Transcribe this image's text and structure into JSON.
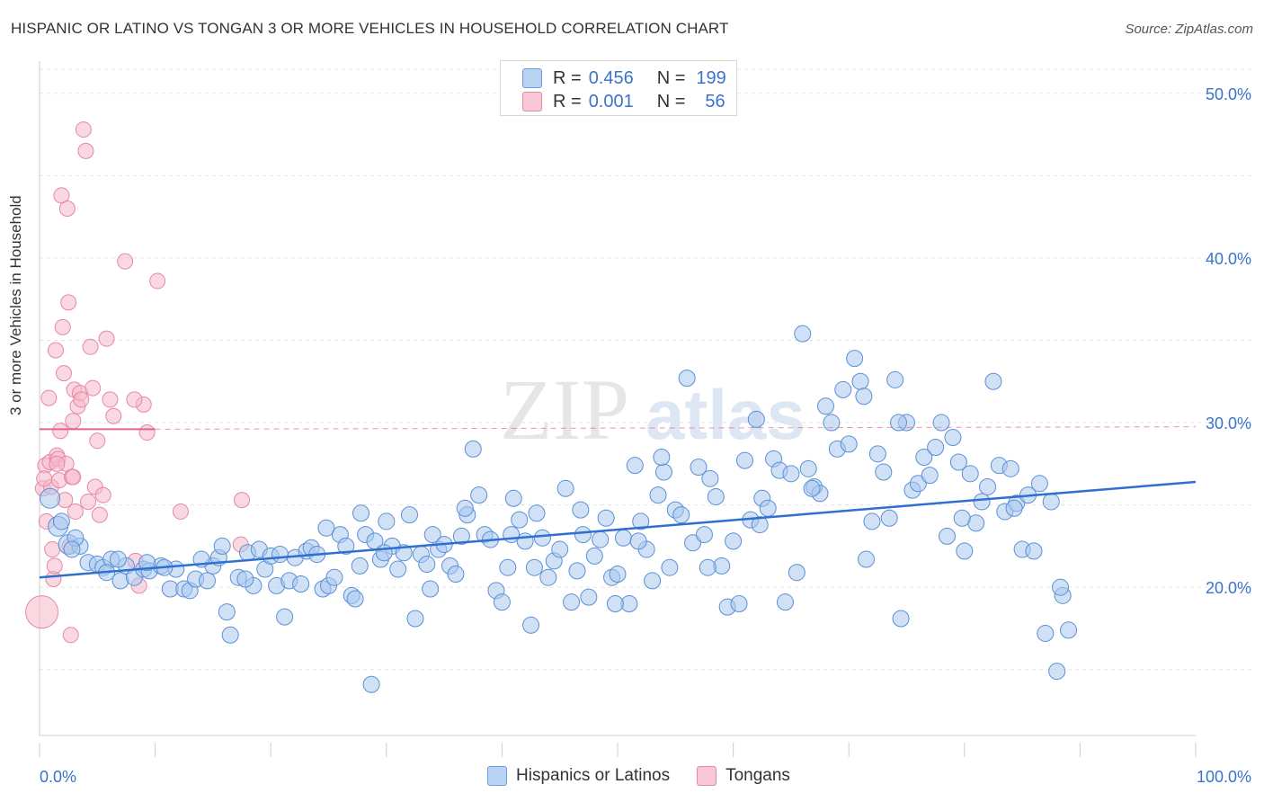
{
  "header": {
    "title": "HISPANIC OR LATINO VS TONGAN 3 OR MORE VEHICLES IN HOUSEHOLD CORRELATION CHART",
    "source": "Source: ZipAtlas.com"
  },
  "watermark": {
    "part1": "ZIP",
    "part2": "atlas"
  },
  "legend": {
    "rows": [
      {
        "r_label": "R =",
        "r_value": "0.456",
        "n_label": "N =",
        "n_value": "199"
      },
      {
        "r_label": "R =",
        "r_value": "0.001",
        "n_label": "N =",
        "n_value": "56"
      }
    ]
  },
  "bottom_legend": {
    "series1": "Hispanics or Latinos",
    "series2": "Tongans"
  },
  "chart_data": {
    "type": "scatter",
    "title": "HISPANIC OR LATINO VS TONGAN 3 OR MORE VEHICLES IN HOUSEHOLD CORRELATION CHART",
    "ylabel": "3 or more Vehicles in Household",
    "xlim": [
      0,
      100
    ],
    "ylim": [
      11.0,
      52.5
    ],
    "x_tick_labels": [
      "0.0%",
      "100.0%"
    ],
    "y_ticks": [
      20,
      30,
      40,
      50
    ],
    "y_tick_labels": [
      "20.0%",
      "30.0%",
      "40.0%",
      "50.0%"
    ],
    "grid": true,
    "colors": {
      "blue_fill": "#a9c8ef",
      "blue_stroke": "#5b8fd6",
      "blue_line": "#2f6fd0",
      "pink_fill": "#f5b8cb",
      "pink_stroke": "#e687a6",
      "pink_line": "#e0658d",
      "tick_text": "#3a73c9"
    },
    "series": [
      {
        "name": "Hispanics or Latinos",
        "r": 0.456,
        "n": 199,
        "trend": {
          "x": [
            0,
            100
          ],
          "y": [
            20.6,
            26.4
          ]
        },
        "points": [
          [
            0.9,
            25.4
          ],
          [
            1.6,
            23.7
          ],
          [
            2.5,
            22.6
          ],
          [
            3.5,
            22.5
          ],
          [
            4.2,
            21.5
          ],
          [
            5.0,
            21.4
          ],
          [
            5.5,
            21.2
          ],
          [
            6.2,
            21.7
          ],
          [
            7.0,
            20.4
          ],
          [
            7.5,
            21.3
          ],
          [
            8.2,
            20.6
          ],
          [
            9.0,
            21.1
          ],
          [
            9.5,
            21.0
          ],
          [
            10.5,
            21.3
          ],
          [
            11.3,
            19.9
          ],
          [
            11.8,
            21.1
          ],
          [
            12.5,
            19.9
          ],
          [
            13.0,
            19.8
          ],
          [
            13.5,
            20.5
          ],
          [
            14.5,
            20.4
          ],
          [
            15.0,
            21.3
          ],
          [
            15.5,
            21.8
          ],
          [
            16.2,
            18.5
          ],
          [
            16.5,
            17.1
          ],
          [
            17.2,
            20.6
          ],
          [
            18.0,
            22.1
          ],
          [
            18.5,
            20.1
          ],
          [
            19.0,
            22.3
          ],
          [
            19.5,
            21.1
          ],
          [
            20.0,
            21.9
          ],
          [
            20.5,
            20.1
          ],
          [
            21.2,
            18.2
          ],
          [
            21.6,
            20.4
          ],
          [
            22.1,
            21.8
          ],
          [
            22.6,
            20.2
          ],
          [
            23.1,
            22.2
          ],
          [
            23.5,
            22.4
          ],
          [
            24.0,
            22.0
          ],
          [
            24.5,
            19.9
          ],
          [
            25.0,
            20.1
          ],
          [
            25.5,
            20.6
          ],
          [
            26.0,
            23.2
          ],
          [
            26.5,
            22.5
          ],
          [
            27.0,
            19.5
          ],
          [
            27.3,
            19.3
          ],
          [
            27.7,
            21.3
          ],
          [
            28.2,
            23.2
          ],
          [
            28.7,
            14.1
          ],
          [
            29.0,
            22.8
          ],
          [
            29.5,
            21.7
          ],
          [
            30.0,
            24.0
          ],
          [
            30.5,
            22.5
          ],
          [
            31.0,
            21.1
          ],
          [
            31.5,
            22.1
          ],
          [
            32.0,
            24.4
          ],
          [
            32.5,
            18.1
          ],
          [
            33.0,
            22.0
          ],
          [
            33.5,
            21.4
          ],
          [
            34.0,
            23.2
          ],
          [
            34.5,
            22.3
          ],
          [
            35.0,
            22.6
          ],
          [
            35.5,
            21.3
          ],
          [
            36.0,
            20.8
          ],
          [
            36.5,
            23.1
          ],
          [
            37.0,
            24.4
          ],
          [
            37.5,
            28.4
          ],
          [
            38.0,
            25.6
          ],
          [
            38.5,
            23.2
          ],
          [
            39.0,
            22.9
          ],
          [
            39.5,
            19.8
          ],
          [
            40.0,
            19.1
          ],
          [
            40.5,
            21.2
          ],
          [
            41.0,
            25.4
          ],
          [
            41.5,
            24.1
          ],
          [
            42.0,
            22.8
          ],
          [
            42.5,
            17.7
          ],
          [
            43.0,
            24.5
          ],
          [
            43.5,
            23.0
          ],
          [
            44.0,
            20.6
          ],
          [
            44.5,
            21.6
          ],
          [
            45.0,
            22.3
          ],
          [
            45.5,
            26.0
          ],
          [
            46.0,
            19.1
          ],
          [
            46.5,
            21.0
          ],
          [
            47.0,
            23.2
          ],
          [
            47.5,
            19.4
          ],
          [
            48.0,
            21.9
          ],
          [
            48.5,
            22.9
          ],
          [
            49.0,
            24.2
          ],
          [
            49.5,
            20.6
          ],
          [
            50.0,
            20.8
          ],
          [
            50.5,
            23.0
          ],
          [
            51.0,
            19.0
          ],
          [
            51.5,
            27.4
          ],
          [
            52.0,
            24.0
          ],
          [
            52.5,
            22.3
          ],
          [
            53.0,
            20.4
          ],
          [
            53.5,
            25.6
          ],
          [
            54.0,
            27.0
          ],
          [
            54.5,
            21.2
          ],
          [
            55.0,
            24.7
          ],
          [
            55.5,
            24.4
          ],
          [
            56.0,
            32.7
          ],
          [
            56.5,
            22.7
          ],
          [
            57.0,
            27.3
          ],
          [
            57.5,
            23.2
          ],
          [
            58.0,
            26.6
          ],
          [
            58.5,
            25.5
          ],
          [
            59.0,
            21.3
          ],
          [
            59.5,
            18.8
          ],
          [
            60.0,
            22.8
          ],
          [
            60.5,
            19.0
          ],
          [
            61.0,
            27.7
          ],
          [
            61.5,
            24.1
          ],
          [
            62.0,
            30.2
          ],
          [
            62.5,
            25.4
          ],
          [
            63.0,
            24.8
          ],
          [
            63.5,
            27.8
          ],
          [
            64.0,
            27.1
          ],
          [
            64.5,
            19.1
          ],
          [
            65.0,
            26.9
          ],
          [
            65.5,
            20.9
          ],
          [
            66.0,
            35.4
          ],
          [
            66.5,
            27.2
          ],
          [
            67.0,
            26.1
          ],
          [
            67.5,
            25.7
          ],
          [
            68.0,
            31.0
          ],
          [
            68.5,
            30.0
          ],
          [
            69.0,
            28.4
          ],
          [
            69.5,
            32.0
          ],
          [
            70.0,
            28.7
          ],
          [
            70.5,
            33.9
          ],
          [
            71.0,
            32.5
          ],
          [
            71.5,
            21.7
          ],
          [
            72.0,
            24.0
          ],
          [
            72.5,
            28.1
          ],
          [
            73.0,
            27.0
          ],
          [
            73.5,
            24.2
          ],
          [
            74.0,
            32.6
          ],
          [
            74.5,
            18.1
          ],
          [
            75.0,
            30.0
          ],
          [
            75.5,
            25.9
          ],
          [
            76.0,
            26.3
          ],
          [
            76.5,
            27.9
          ],
          [
            77.0,
            26.8
          ],
          [
            77.5,
            28.5
          ],
          [
            78.0,
            30.0
          ],
          [
            78.5,
            23.1
          ],
          [
            79.0,
            29.1
          ],
          [
            79.5,
            27.6
          ],
          [
            80.0,
            22.2
          ],
          [
            80.5,
            26.9
          ],
          [
            81.0,
            23.9
          ],
          [
            81.5,
            25.2
          ],
          [
            82.0,
            26.1
          ],
          [
            82.5,
            32.5
          ],
          [
            83.0,
            27.4
          ],
          [
            83.5,
            24.6
          ],
          [
            84.0,
            27.2
          ],
          [
            84.5,
            25.1
          ],
          [
            85.0,
            22.3
          ],
          [
            85.5,
            25.6
          ],
          [
            86.0,
            22.2
          ],
          [
            86.5,
            26.3
          ],
          [
            87.0,
            17.2
          ],
          [
            87.5,
            25.2
          ],
          [
            88.0,
            14.9
          ],
          [
            88.5,
            19.5
          ],
          [
            89.0,
            17.4
          ],
          [
            9.3,
            21.5
          ],
          [
            1.9,
            24.0
          ],
          [
            3.1,
            23.0
          ],
          [
            5.8,
            20.9
          ],
          [
            14.0,
            21.7
          ],
          [
            17.8,
            20.5
          ],
          [
            24.8,
            23.6
          ],
          [
            29.8,
            22.1
          ],
          [
            36.8,
            24.8
          ],
          [
            42.8,
            21.2
          ],
          [
            46.8,
            24.7
          ],
          [
            51.8,
            22.8
          ],
          [
            53.8,
            27.9
          ],
          [
            57.8,
            21.2
          ],
          [
            62.3,
            23.8
          ],
          [
            66.8,
            26.0
          ],
          [
            71.3,
            31.6
          ],
          [
            74.3,
            30.0
          ],
          [
            79.8,
            24.2
          ],
          [
            84.3,
            24.8
          ],
          [
            88.3,
            20.0
          ],
          [
            2.8,
            22.3
          ],
          [
            6.8,
            21.7
          ],
          [
            10.8,
            21.2
          ],
          [
            15.8,
            22.5
          ],
          [
            20.8,
            22.0
          ],
          [
            27.8,
            24.5
          ],
          [
            33.8,
            19.9
          ],
          [
            40.8,
            23.2
          ],
          [
            49.8,
            19.0
          ]
        ]
      },
      {
        "name": "Tongans",
        "r": 0.001,
        "n": 56,
        "trend": {
          "x": [
            0,
            10
          ],
          "y": [
            29.6,
            29.6
          ]
        },
        "points": [
          [
            0.2,
            18.5
          ],
          [
            0.3,
            26.0
          ],
          [
            0.5,
            27.4
          ],
          [
            0.6,
            24.0
          ],
          [
            0.8,
            31.5
          ],
          [
            0.9,
            27.6
          ],
          [
            1.0,
            26.1
          ],
          [
            1.1,
            22.3
          ],
          [
            1.2,
            20.5
          ],
          [
            1.3,
            21.3
          ],
          [
            1.4,
            34.4
          ],
          [
            1.5,
            28.0
          ],
          [
            1.6,
            27.8
          ],
          [
            1.7,
            26.5
          ],
          [
            1.8,
            29.5
          ],
          [
            1.9,
            43.8
          ],
          [
            2.0,
            35.8
          ],
          [
            2.1,
            33.0
          ],
          [
            2.2,
            25.3
          ],
          [
            2.3,
            27.5
          ],
          [
            2.4,
            43.0
          ],
          [
            2.5,
            37.3
          ],
          [
            2.6,
            22.5
          ],
          [
            2.7,
            17.1
          ],
          [
            2.8,
            26.7
          ],
          [
            2.9,
            30.1
          ],
          [
            3.0,
            32.0
          ],
          [
            3.1,
            24.6
          ],
          [
            3.3,
            31.0
          ],
          [
            3.5,
            31.8
          ],
          [
            3.6,
            31.4
          ],
          [
            3.8,
            47.8
          ],
          [
            4.0,
            46.5
          ],
          [
            4.2,
            25.2
          ],
          [
            4.4,
            34.6
          ],
          [
            4.6,
            32.1
          ],
          [
            4.8,
            26.1
          ],
          [
            5.0,
            28.9
          ],
          [
            5.2,
            24.4
          ],
          [
            5.5,
            25.6
          ],
          [
            5.8,
            35.1
          ],
          [
            6.1,
            31.4
          ],
          [
            6.4,
            30.4
          ],
          [
            8.3,
            21.6
          ],
          [
            8.6,
            20.1
          ],
          [
            9.0,
            31.1
          ],
          [
            9.3,
            29.4
          ],
          [
            10.2,
            38.6
          ],
          [
            7.4,
            39.8
          ],
          [
            12.2,
            24.6
          ],
          [
            17.5,
            25.3
          ],
          [
            17.4,
            22.6
          ],
          [
            0.4,
            26.6
          ],
          [
            1.5,
            27.5
          ],
          [
            2.9,
            26.7
          ],
          [
            8.2,
            31.4
          ]
        ]
      }
    ]
  }
}
